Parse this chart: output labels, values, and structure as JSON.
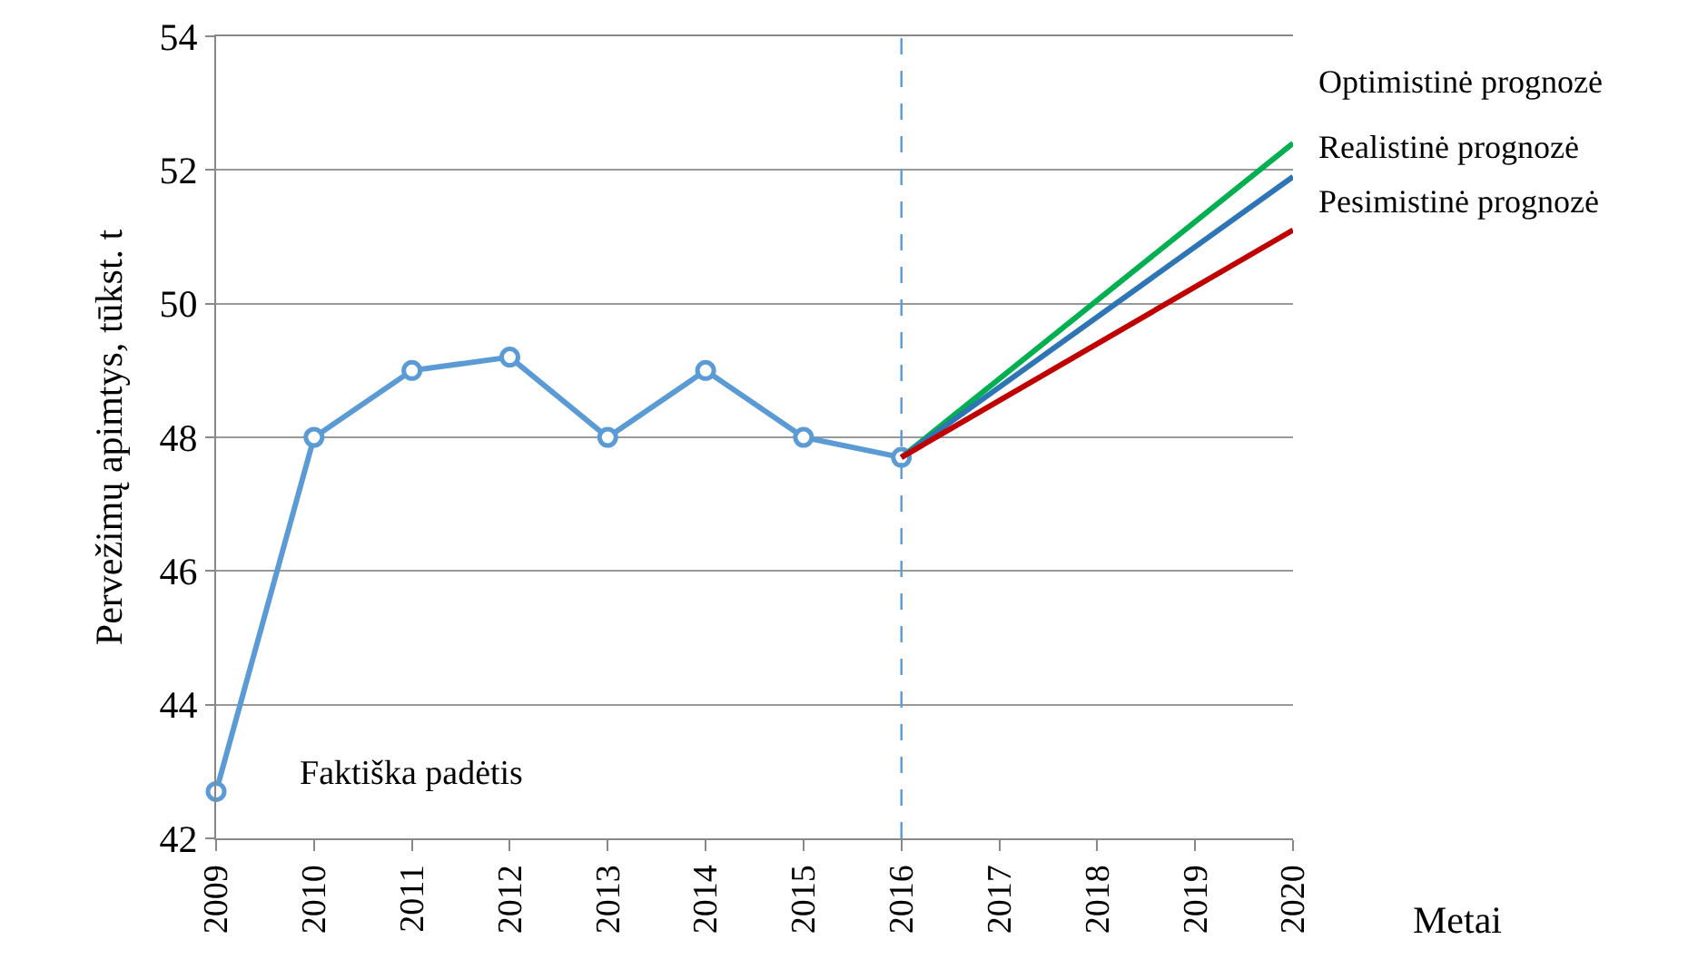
{
  "chart_data": {
    "type": "line",
    "xlabel": "Metai",
    "ylabel": "Pervežimų apimtys, tūkst. t",
    "x": [
      2009,
      2010,
      2011,
      2012,
      2013,
      2014,
      2015,
      2016,
      2017,
      2018,
      2019,
      2020
    ],
    "series": [
      {
        "name": "Faktiška padėtis",
        "color": "#5b9bd5",
        "marker": "circle",
        "values": [
          42.7,
          48,
          49,
          49.2,
          48,
          49,
          48,
          47.7,
          null,
          null,
          null,
          null
        ]
      },
      {
        "name": "Optimistinė prognozė",
        "color": "#00b050",
        "marker": "none",
        "values": [
          null,
          null,
          null,
          null,
          null,
          null,
          null,
          47.7,
          null,
          null,
          null,
          52.4
        ]
      },
      {
        "name": "Realistinė prognozė",
        "color": "#2e75b6",
        "marker": "none",
        "values": [
          null,
          null,
          null,
          null,
          null,
          null,
          null,
          47.7,
          null,
          null,
          null,
          51.9
        ]
      },
      {
        "name": "Pesimistinė prognozė",
        "color": "#c00000",
        "marker": "none",
        "values": [
          null,
          null,
          null,
          null,
          null,
          null,
          null,
          47.7,
          null,
          null,
          null,
          51.1
        ]
      }
    ],
    "xlim": [
      2009,
      2020
    ],
    "xticks": [
      2009,
      2010,
      2011,
      2012,
      2013,
      2014,
      2015,
      2016,
      2017,
      2018,
      2019,
      2020
    ],
    "ylim": [
      42,
      54
    ],
    "yticks": [
      42,
      44,
      46,
      48,
      50,
      52,
      54
    ],
    "ref_lines": [
      {
        "axis": "x",
        "value": 2016,
        "color": "#5b9bd5",
        "line_style": "dashed"
      }
    ],
    "grid": "y",
    "legend": false,
    "line_style": "solid"
  }
}
